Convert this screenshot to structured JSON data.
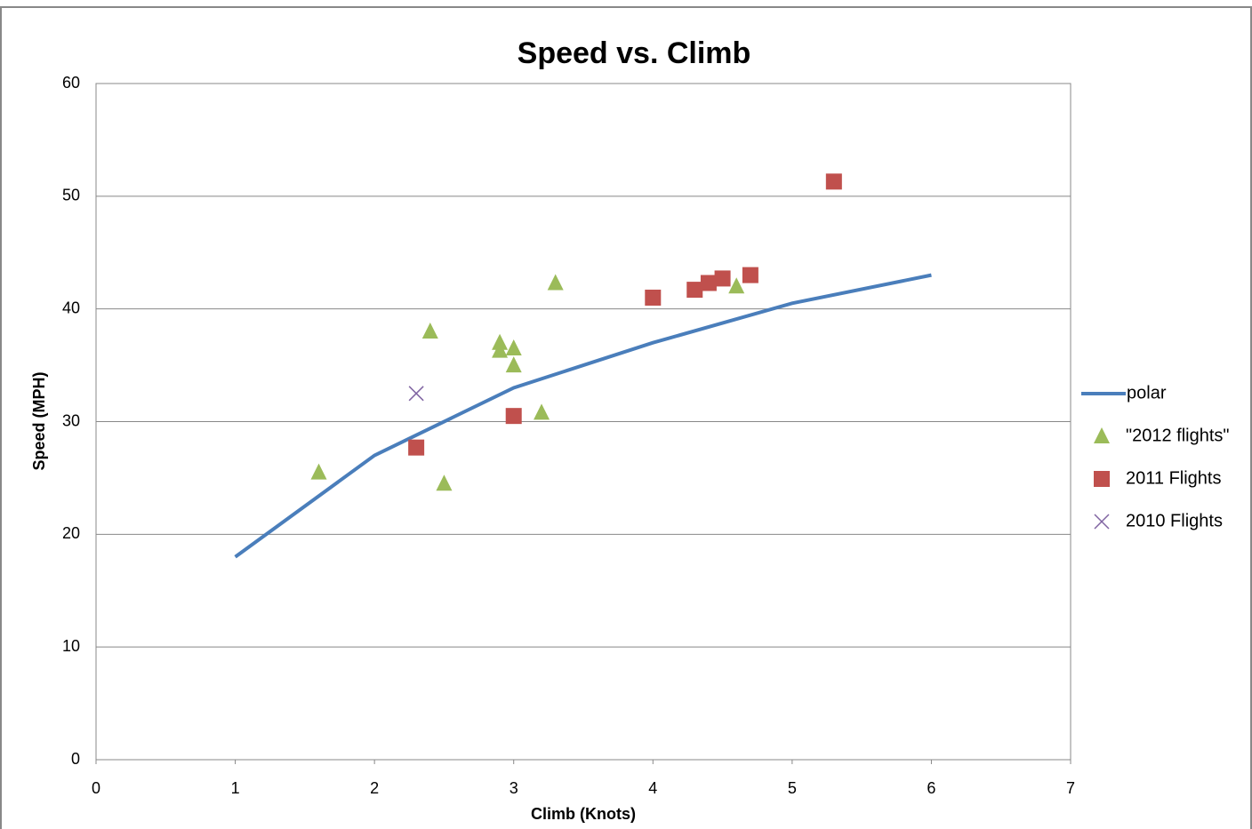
{
  "chart_data": {
    "type": "scatter",
    "title": "Speed vs. Climb",
    "x_label": "Climb (Knots)",
    "y_label": "Speed (MPH)",
    "xlim": [
      0,
      7
    ],
    "xticks": [
      0,
      1,
      2,
      3,
      4,
      5,
      6,
      7
    ],
    "ylim": [
      0,
      60
    ],
    "yticks": [
      0,
      10,
      20,
      30,
      40,
      50,
      60
    ],
    "grid": true,
    "legend": "right",
    "series": [
      {
        "name": "polar",
        "color": "#4a7ebb",
        "marker": "line",
        "x": [
          1,
          2,
          3,
          4,
          5,
          6
        ],
        "values": [
          18,
          27,
          33,
          37,
          40.5,
          43
        ]
      },
      {
        "name": "\"2012 flights\"",
        "color": "#9bbb59",
        "marker": "triangle",
        "x": [
          1.6,
          2.4,
          2.5,
          2.9,
          2.9,
          3.0,
          3.0,
          3.2,
          3.3,
          4.6
        ],
        "values": [
          25.5,
          38,
          24.5,
          37,
          36.3,
          36.5,
          35,
          30.8,
          42.3,
          42
        ]
      },
      {
        "name": "2011 Flights",
        "color": "#c0504d",
        "marker": "square",
        "x": [
          2.3,
          3.0,
          4.0,
          4.3,
          4.4,
          4.5,
          4.7,
          5.3
        ],
        "values": [
          27.7,
          30.5,
          41,
          41.7,
          42.3,
          42.7,
          43,
          51.3
        ]
      },
      {
        "name": "2010 Flights",
        "color": "#8064a2",
        "marker": "x",
        "x": [
          2.3
        ],
        "values": [
          32.5
        ]
      }
    ]
  }
}
